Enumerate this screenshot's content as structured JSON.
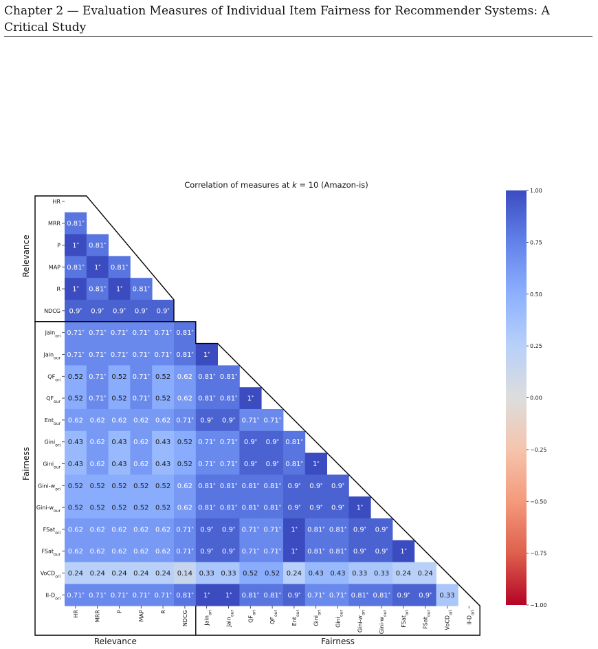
{
  "page_header": "Chapter 2 — Evaluation Measures of Individual Item Fairness for Recommender Systems: A Critical Study",
  "chart_data": {
    "type": "heatmap",
    "title_prefix": "Correlation of measures at ",
    "title_k": "k",
    "title_suffix": " = 10 (Amazon-is)",
    "labels": [
      {
        "base": "HR",
        "sub": ""
      },
      {
        "base": "MRR",
        "sub": ""
      },
      {
        "base": "P",
        "sub": ""
      },
      {
        "base": "MAP",
        "sub": ""
      },
      {
        "base": "R",
        "sub": ""
      },
      {
        "base": "NDCG",
        "sub": ""
      },
      {
        "base": "Jain",
        "sub": "ori"
      },
      {
        "base": "Jain",
        "sub": "our"
      },
      {
        "base": "QF",
        "sub": "ori"
      },
      {
        "base": "QF",
        "sub": "our"
      },
      {
        "base": "Ent",
        "sub": "our"
      },
      {
        "base": "Gini",
        "sub": "ori"
      },
      {
        "base": "Gini",
        "sub": "our"
      },
      {
        "base": "Gini-w",
        "sub": "ori"
      },
      {
        "base": "Gini-w",
        "sub": "our"
      },
      {
        "base": "FSat",
        "sub": "ori"
      },
      {
        "base": "FSat",
        "sub": "our"
      },
      {
        "base": "VoCD",
        "sub": "ori"
      },
      {
        "base": "II-D",
        "sub": "ori"
      }
    ],
    "groups": [
      {
        "name": "Relevance",
        "start": 0,
        "end": 5
      },
      {
        "name": "Fairness",
        "start": 6,
        "end": 18
      }
    ],
    "rows": [
      [],
      [
        "0.81*"
      ],
      [
        "1*",
        "0.81*"
      ],
      [
        "0.81*",
        "1*",
        "0.81*"
      ],
      [
        "1*",
        "0.81*",
        "1*",
        "0.81*"
      ],
      [
        "0.9*",
        "0.9*",
        "0.9*",
        "0.9*",
        "0.9*"
      ],
      [
        "0.71*",
        "0.71*",
        "0.71*",
        "0.71*",
        "0.71*",
        "0.81*"
      ],
      [
        "0.71*",
        "0.71*",
        "0.71*",
        "0.71*",
        "0.71*",
        "0.81*",
        "1*"
      ],
      [
        "0.52",
        "0.71*",
        "0.52",
        "0.71*",
        "0.52",
        "0.62",
        "0.81*",
        "0.81*"
      ],
      [
        "0.52",
        "0.71*",
        "0.52",
        "0.71*",
        "0.52",
        "0.62",
        "0.81*",
        "0.81*",
        "1*"
      ],
      [
        "0.62",
        "0.62",
        "0.62",
        "0.62",
        "0.62",
        "0.71*",
        "0.9*",
        "0.9*",
        "0.71*",
        "0.71*"
      ],
      [
        "0.43",
        "0.62",
        "0.43",
        "0.62",
        "0.43",
        "0.52",
        "0.71*",
        "0.71*",
        "0.9*",
        "0.9*",
        "0.81*"
      ],
      [
        "0.43",
        "0.62",
        "0.43",
        "0.62",
        "0.43",
        "0.52",
        "0.71*",
        "0.71*",
        "0.9*",
        "0.9*",
        "0.81*",
        "1*"
      ],
      [
        "0.52",
        "0.52",
        "0.52",
        "0.52",
        "0.52",
        "0.62",
        "0.81*",
        "0.81*",
        "0.81*",
        "0.81*",
        "0.9*",
        "0.9*",
        "0.9*"
      ],
      [
        "0.52",
        "0.52",
        "0.52",
        "0.52",
        "0.52",
        "0.62",
        "0.81*",
        "0.81*",
        "0.81*",
        "0.81*",
        "0.9*",
        "0.9*",
        "0.9*",
        "1*"
      ],
      [
        "0.62",
        "0.62",
        "0.62",
        "0.62",
        "0.62",
        "0.71*",
        "0.9*",
        "0.9*",
        "0.71*",
        "0.71*",
        "1*",
        "0.81*",
        "0.81*",
        "0.9*",
        "0.9*"
      ],
      [
        "0.62",
        "0.62",
        "0.62",
        "0.62",
        "0.62",
        "0.71*",
        "0.9*",
        "0.9*",
        "0.71*",
        "0.71*",
        "1*",
        "0.81*",
        "0.81*",
        "0.9*",
        "0.9*",
        "1*"
      ],
      [
        "0.24",
        "0.24",
        "0.24",
        "0.24",
        "0.24",
        "0.14",
        "0.33",
        "0.33",
        "0.52",
        "0.52",
        "0.24",
        "0.43",
        "0.43",
        "0.33",
        "0.33",
        "0.24",
        "0.24"
      ],
      [
        "0.71*",
        "0.71*",
        "0.71*",
        "0.71*",
        "0.71*",
        "0.81*",
        "1*",
        "1*",
        "0.81*",
        "0.81*",
        "0.9*",
        "0.71*",
        "0.71*",
        "0.81*",
        "0.81*",
        "0.9*",
        "0.9*",
        "0.33"
      ]
    ],
    "colorbar": {
      "ticks": [
        "1.00",
        "0.75",
        "0.50",
        "0.25",
        "0.00",
        "−0.25",
        "−0.50",
        "−0.75",
        "−1.00"
      ],
      "vmin": -1,
      "vmax": 1,
      "colormap": "coolwarm",
      "low_color": "#b40426",
      "mid_color": "#dddddd",
      "high_color": "#3b4cc0"
    }
  }
}
